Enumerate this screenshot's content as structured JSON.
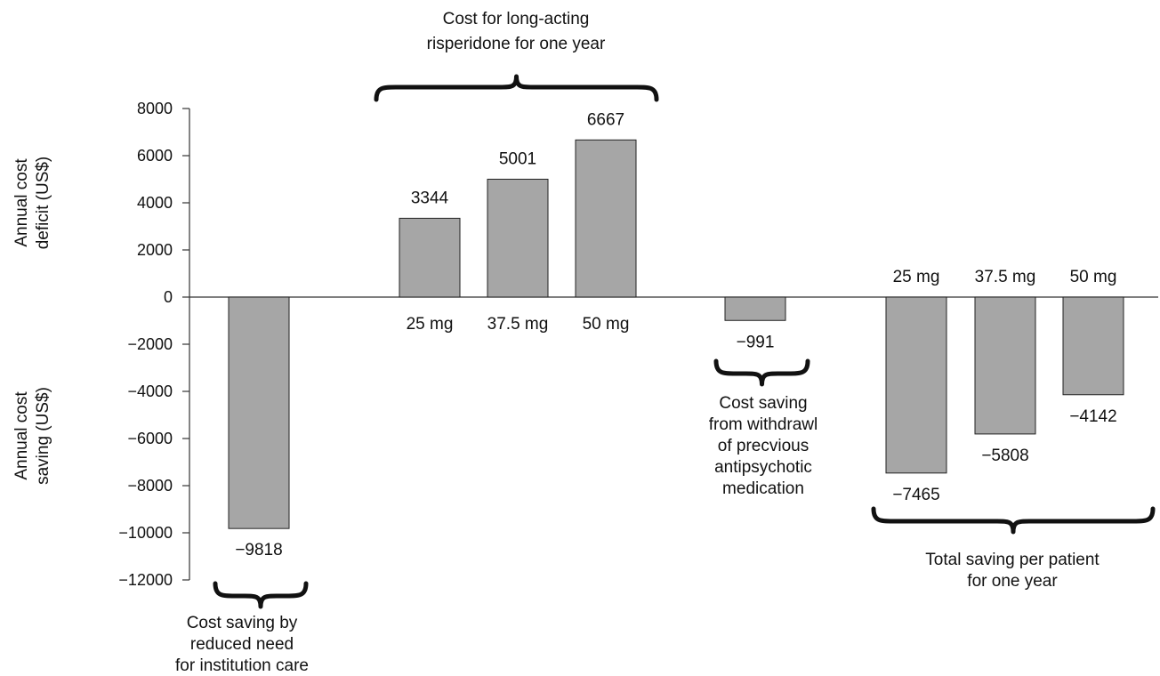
{
  "chart_data": {
    "type": "bar",
    "ylim": [
      -12000,
      8000
    ],
    "yticks": [
      8000,
      6000,
      4000,
      2000,
      0,
      -2000,
      -4000,
      -6000,
      -8000,
      -10000,
      -12000
    ],
    "ytick_labels": [
      "8000",
      "6000",
      "4000",
      "2000",
      "0",
      "−2000",
      "−4000",
      "−6000",
      "−8000",
      "−10000",
      "−12000"
    ],
    "ylabel_top": [
      "Annual cost",
      "deficit (US$)"
    ],
    "ylabel_bottom": [
      "Annual cost",
      "saving (US$)"
    ],
    "grid": false,
    "bar_color": "#a6a6a6",
    "bars": [
      {
        "value": -9818,
        "value_label": "−9818",
        "dose": ""
      },
      {
        "value": 3344,
        "value_label": "3344",
        "dose": "25 mg"
      },
      {
        "value": 5001,
        "value_label": "5001",
        "dose": "37.5 mg"
      },
      {
        "value": 6667,
        "value_label": "6667",
        "dose": "50 mg"
      },
      {
        "value": -991,
        "value_label": "−991",
        "dose": ""
      },
      {
        "value": -7465,
        "value_label": "−7465",
        "dose": "25 mg"
      },
      {
        "value": -5808,
        "value_label": "−5808",
        "dose": "37.5 mg"
      },
      {
        "value": -4142,
        "value_label": "−4142",
        "dose": "50 mg"
      }
    ],
    "annotations": [
      {
        "lines": [
          "Cost for long-acting",
          "risperidone for one year"
        ]
      },
      {
        "lines": [
          "Cost saving by",
          "reduced need",
          "for institution care"
        ]
      },
      {
        "lines": [
          "Cost saving",
          "from withdrawl",
          "of precvious",
          "antipsychotic",
          "medication"
        ]
      },
      {
        "lines": [
          "Total saving per patient",
          "for one year"
        ]
      }
    ]
  }
}
